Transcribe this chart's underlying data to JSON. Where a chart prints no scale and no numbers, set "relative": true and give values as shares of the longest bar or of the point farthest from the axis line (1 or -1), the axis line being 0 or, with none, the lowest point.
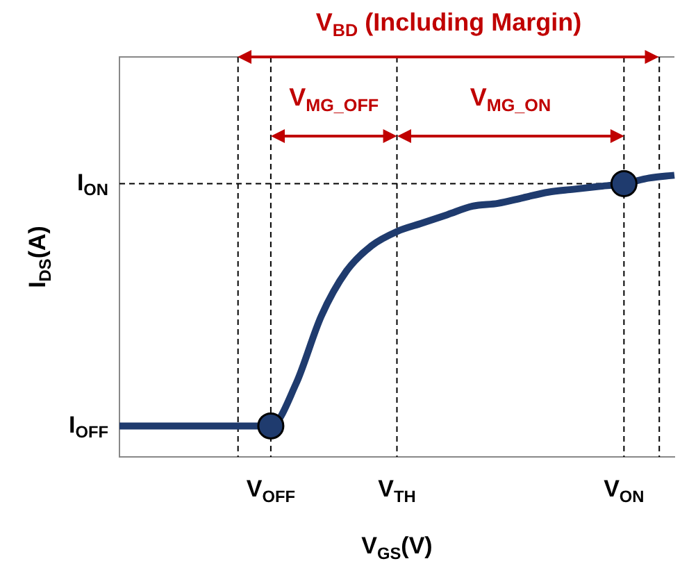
{
  "chart_data": {
    "type": "line",
    "relative": true,
    "xlabel": "V$_{GS}$(V)",
    "ylabel": "I$_{DS}$(A)",
    "categories": [
      null,
      null,
      null,
      null,
      null,
      null,
      "V$_{OFF}$",
      null,
      null,
      null,
      null,
      "V$_{TH}$",
      null,
      null,
      null,
      null,
      null,
      null,
      null,
      null,
      "V$_{ON}$",
      null,
      null
    ],
    "series": [
      {
        "color": "#1f3b6e",
        "marker": "none",
        "values": [
          0.11,
          0.11,
          0.11,
          0.11,
          0.11,
          0.11,
          0.11,
          0.26,
          0.5,
          0.66,
          0.75,
          0.8,
          0.83,
          0.86,
          0.89,
          0.9,
          0.92,
          0.94,
          0.95,
          0.96,
          0.97,
          0.99,
          1
        ]
      },
      {
        "type": "scatter",
        "color": "#1f3b6e",
        "marker": "circle",
        "x": [
          "V$_{OFF}$",
          "V$_{ON}$"
        ],
        "values": [
          0.11,
          0.97
        ]
      }
    ],
    "ref_lines": [
      {
        "axis": "x",
        "value": "V$_{OFF}$",
        "color": "#000000",
        "line_style": "dashed"
      },
      {
        "axis": "x",
        "value": "V$_{TH}$",
        "color": "#000000",
        "line_style": "dashed"
      },
      {
        "axis": "x",
        "value": "V$_{ON}$",
        "color": "#000000",
        "line_style": "dashed"
      },
      {
        "axis": "y",
        "value": 0.97,
        "label": "I$_{ON}$",
        "color": "#000000",
        "line_style": "dashed"
      }
    ],
    "annotations": [
      "V$_{BD}$ (Including Margin)",
      "V$_{MG_OFF}$",
      "V$_{MG_ON}$",
      "I$_{OFF}$"
    ],
    "grid": false,
    "legend": false
  }
}
